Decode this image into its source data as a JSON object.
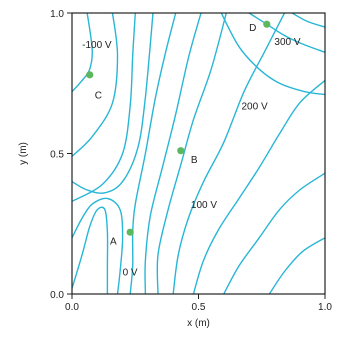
{
  "chart_data": {
    "type": "contour",
    "xlabel": "x (m)",
    "ylabel": "y (m)",
    "xlim": [
      0.0,
      1.0
    ],
    "ylim": [
      0.0,
      1.0
    ],
    "x_ticks": [
      0.0,
      0.5,
      1.0
    ],
    "x_tick_labels": [
      "0.0",
      "0.5",
      "1.0"
    ],
    "y_ticks": [
      0.0,
      0.5,
      1.0
    ],
    "y_tick_labels": [
      "0.0",
      "0.5",
      "1.0"
    ],
    "grid": false,
    "colors": {
      "contour": "#29b6d6",
      "point": "#5cb85c",
      "axis": "#222222"
    },
    "contour_labels": [
      {
        "text": "-100 V",
        "x": 0.04,
        "y": 0.89
      },
      {
        "text": "300 V",
        "x": 0.8,
        "y": 0.9
      },
      {
        "text": "200 V",
        "x": 0.67,
        "y": 0.67
      },
      {
        "text": "100 V",
        "x": 0.47,
        "y": 0.32
      },
      {
        "text": "0 V",
        "x": 0.2,
        "y": 0.08
      }
    ],
    "points": [
      {
        "name": "A",
        "x": 0.23,
        "y": 0.22,
        "label_dx": -0.08,
        "label_dy": -0.03
      },
      {
        "name": "B",
        "x": 0.43,
        "y": 0.51,
        "label_dx": 0.04,
        "label_dy": -0.03
      },
      {
        "name": "C",
        "x": 0.07,
        "y": 0.78,
        "label_dx": 0.02,
        "label_dy": -0.07
      },
      {
        "name": "D",
        "x": 0.77,
        "y": 0.96,
        "label_dx": -0.07,
        "label_dy": -0.01
      }
    ],
    "contours": [
      [
        [
          0.0,
          0.72
        ],
        [
          0.04,
          0.76
        ],
        [
          0.07,
          0.8
        ],
        [
          0.08,
          0.87
        ],
        [
          0.06,
          1.0
        ]
      ],
      [
        [
          0.16,
          1.0
        ],
        [
          0.18,
          0.85
        ],
        [
          0.16,
          0.68
        ],
        [
          0.08,
          0.56
        ],
        [
          0.0,
          0.49
        ]
      ],
      [
        [
          0.0,
          0.33
        ],
        [
          0.12,
          0.39
        ],
        [
          0.2,
          0.5
        ],
        [
          0.23,
          0.67
        ],
        [
          0.24,
          0.85
        ],
        [
          0.25,
          1.0
        ]
      ],
      [
        [
          0.0,
          0.4
        ],
        [
          0.06,
          0.37
        ],
        [
          0.13,
          0.36
        ],
        [
          0.2,
          0.4
        ],
        [
          0.26,
          0.52
        ],
        [
          0.29,
          0.7
        ],
        [
          0.32,
          1.0
        ]
      ],
      [
        [
          0.0,
          0.02
        ],
        [
          0.04,
          0.14
        ],
        [
          0.07,
          0.24
        ],
        [
          0.1,
          0.3
        ],
        [
          0.13,
          0.3
        ],
        [
          0.14,
          0.22
        ],
        [
          0.14,
          0.1
        ],
        [
          0.14,
          0.0
        ]
      ],
      [
        [
          0.0,
          0.2
        ],
        [
          0.04,
          0.27
        ],
        [
          0.08,
          0.32
        ],
        [
          0.14,
          0.34
        ],
        [
          0.19,
          0.3
        ],
        [
          0.2,
          0.2
        ],
        [
          0.19,
          0.08
        ],
        [
          0.18,
          0.0
        ]
      ],
      [
        [
          0.23,
          0.0
        ],
        [
          0.24,
          0.1
        ],
        [
          0.24,
          0.22
        ],
        [
          0.25,
          0.32
        ],
        [
          0.29,
          0.5
        ],
        [
          0.33,
          0.7
        ],
        [
          0.37,
          0.86
        ],
        [
          0.41,
          1.0
        ]
      ],
      [
        [
          0.29,
          0.0
        ],
        [
          0.29,
          0.12
        ],
        [
          0.31,
          0.28
        ],
        [
          0.36,
          0.46
        ],
        [
          0.41,
          0.64
        ],
        [
          0.46,
          0.84
        ],
        [
          0.51,
          1.0
        ]
      ],
      [
        [
          0.34,
          0.0
        ],
        [
          0.34,
          0.14
        ],
        [
          0.38,
          0.3
        ],
        [
          0.43,
          0.46
        ],
        [
          0.48,
          0.62
        ],
        [
          0.55,
          0.8
        ],
        [
          0.61,
          1.0
        ]
      ],
      [
        [
          0.4,
          0.0
        ],
        [
          0.42,
          0.14
        ],
        [
          0.46,
          0.27
        ],
        [
          0.52,
          0.4
        ],
        [
          0.6,
          0.54
        ],
        [
          0.68,
          0.72
        ],
        [
          0.76,
          0.86
        ],
        [
          0.84,
          1.0
        ]
      ],
      [
        [
          0.48,
          0.0
        ],
        [
          0.52,
          0.12
        ],
        [
          0.58,
          0.23
        ],
        [
          0.66,
          0.34
        ],
        [
          0.74,
          0.45
        ],
        [
          0.82,
          0.57
        ],
        [
          0.9,
          0.68
        ],
        [
          1.0,
          0.76
        ]
      ],
      [
        [
          0.6,
          0.0
        ],
        [
          0.66,
          0.1
        ],
        [
          0.74,
          0.2
        ],
        [
          0.82,
          0.3
        ],
        [
          0.9,
          0.37
        ],
        [
          1.0,
          0.43
        ]
      ],
      [
        [
          0.78,
          0.0
        ],
        [
          0.84,
          0.08
        ],
        [
          0.91,
          0.15
        ],
        [
          1.0,
          0.2
        ]
      ],
      [
        [
          0.59,
          1.0
        ],
        [
          0.66,
          0.88
        ],
        [
          0.74,
          0.8
        ],
        [
          0.82,
          0.75
        ],
        [
          0.92,
          0.72
        ],
        [
          1.0,
          0.71
        ]
      ],
      [
        [
          0.7,
          1.0
        ],
        [
          0.77,
          0.96
        ],
        [
          0.84,
          0.92
        ],
        [
          0.91,
          0.89
        ],
        [
          1.0,
          0.86
        ]
      ],
      [
        [
          0.87,
          1.0
        ],
        [
          0.93,
          0.97
        ],
        [
          1.0,
          0.95
        ]
      ]
    ]
  }
}
